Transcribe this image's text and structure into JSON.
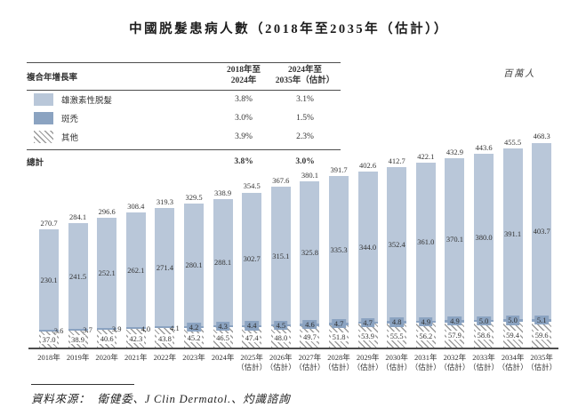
{
  "title": "中國脱髮患病人數（2018年至2035年（估計））",
  "unit_label": "百萬人",
  "cagr_table": {
    "header_label": "複合年增長率",
    "col1": {
      "line1": "2018年至",
      "line2": "2024年"
    },
    "col2": {
      "line1": "2024年至",
      "line2": "2035年（估計）"
    },
    "rows": [
      {
        "name": "雄激素性脱髮",
        "swatch": "solid-light-blue",
        "v1": "3.8%",
        "v2": "3.1%"
      },
      {
        "name": "斑禿",
        "swatch": "solid-dark-blue",
        "v1": "3.0%",
        "v2": "1.5%"
      },
      {
        "name": "其他",
        "swatch": "diagonal-hatch",
        "v1": "3.9%",
        "v2": "2.3%"
      }
    ],
    "total": {
      "label": "總計",
      "v1": "3.8%",
      "v2": "3.0%"
    }
  },
  "source": {
    "label": "資料來源：",
    "text": "衛健委、J Clin Dermatol.、灼識諮詢"
  },
  "colors": {
    "light_blue": "#b9c7d9",
    "dark_blue": "#8ba3c1",
    "hatch_line": "#9b9b9b",
    "rule": "#4d4d4d"
  },
  "chart_data": {
    "type": "bar",
    "stacked": true,
    "title": "中國脱髮患病人數（2018年至2035年（估計））",
    "ylabel": "百萬人",
    "ylim": [
      0,
      480
    ],
    "grid": false,
    "legend_position": "top-left-table",
    "categories": [
      "2018年",
      "2019年",
      "2020年",
      "2021年",
      "2022年",
      "2023年",
      "2024年",
      "2025年",
      "2026年",
      "2027年",
      "2028年",
      "2029年",
      "2030年",
      "2031年",
      "2032年",
      "2033年",
      "2034年",
      "2035年"
    ],
    "estimate_suffix": "（估計）",
    "estimate_from_index": 7,
    "series": [
      {
        "name": "雄激素性脱髮",
        "values": [
          230.1,
          241.5,
          252.1,
          262.1,
          271.4,
          280.1,
          288.1,
          302.7,
          315.1,
          325.8,
          335.3,
          344.0,
          352.4,
          361.0,
          370.1,
          380.0,
          391.1,
          403.7
        ]
      },
      {
        "name": "斑禿",
        "values": [
          3.6,
          3.7,
          3.9,
          4.0,
          4.1,
          4.2,
          4.3,
          4.4,
          4.5,
          4.6,
          4.7,
          4.7,
          4.8,
          4.9,
          4.9,
          5.0,
          5.0,
          5.1
        ]
      },
      {
        "name": "其他",
        "values": [
          37.0,
          38.9,
          40.6,
          42.3,
          43.8,
          45.2,
          46.5,
          47.4,
          48.0,
          49.7,
          51.8,
          53.9,
          55.5,
          56.2,
          57.9,
          58.6,
          59.4,
          59.6
        ]
      }
    ],
    "totals": [
      270.7,
      284.1,
      296.6,
      308.4,
      319.3,
      329.5,
      338.9,
      354.5,
      367.6,
      380.1,
      391.7,
      402.6,
      412.7,
      422.1,
      432.9,
      443.6,
      455.5,
      468.3
    ]
  }
}
